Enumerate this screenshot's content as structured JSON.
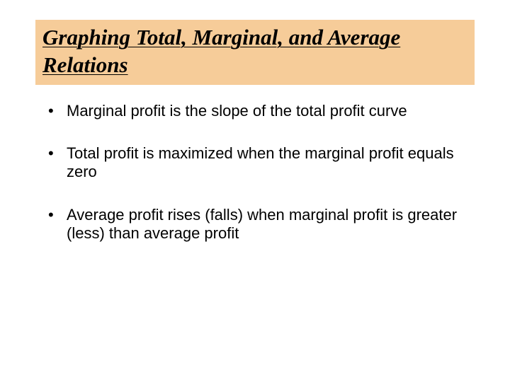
{
  "slide": {
    "title": "Graphing Total, Marginal, and Average Relations",
    "title_background": "#f6cc99",
    "title_font": "Times New Roman",
    "title_fontsize": 31,
    "title_color": "#000000",
    "body_font": "Arial",
    "body_fontsize": 22,
    "body_color": "#000000",
    "background_color": "#ffffff",
    "bullets": [
      "Marginal profit is the slope of the total profit curve",
      "Total profit is maximized when the marginal profit equals zero",
      "Average profit rises (falls) when marginal profit is greater (less) than average profit"
    ]
  }
}
